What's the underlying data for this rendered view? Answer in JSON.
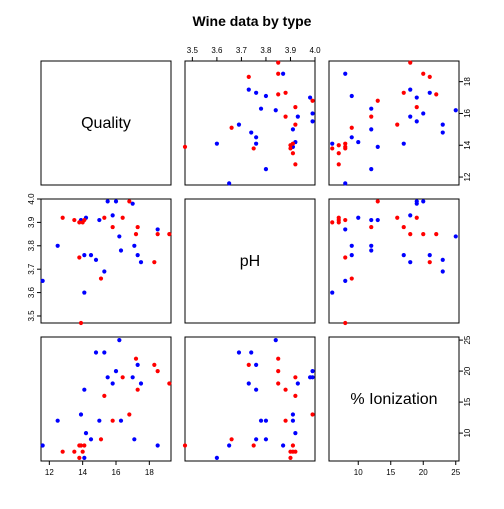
{
  "chart_data": {
    "type": "scatter",
    "title": "Wine data by type",
    "matrix": "scatterplot-matrix",
    "variables": [
      "Quality",
      "pH",
      "% Ionization"
    ],
    "ranges": {
      "quality": [
        11.5,
        19.3
      ],
      "ph": [
        3.47,
        4.0
      ],
      "ionization": [
        5.5,
        25.5
      ]
    },
    "ticks": {
      "quality": [
        12,
        14,
        16,
        18
      ],
      "ph": [
        3.5,
        3.6,
        3.7,
        3.8,
        3.9,
        4.0
      ],
      "ionization": [
        10,
        15,
        20,
        25
      ]
    },
    "tick_labels": {
      "quality": [
        "12",
        "14",
        "16",
        "18"
      ],
      "ph": [
        "3.5",
        "3.6",
        "3.7",
        "3.8",
        "3.9",
        "4.0"
      ],
      "ionization": [
        "10",
        "15",
        "20",
        "25"
      ]
    },
    "grid": false,
    "legend": "none",
    "series": [
      {
        "color": "#0000ff",
        "points": [
          {
            "quality": 11.6,
            "ph": 3.65,
            "ionization": 8
          },
          {
            "quality": 12.5,
            "ph": 3.8,
            "ionization": 12
          },
          {
            "quality": 13.9,
            "ph": 3.91,
            "ionization": 13
          },
          {
            "quality": 14.1,
            "ph": 3.76,
            "ionization": 17
          },
          {
            "quality": 14.1,
            "ph": 3.6,
            "ionization": 6
          },
          {
            "quality": 14.2,
            "ph": 3.92,
            "ionization": 10
          },
          {
            "quality": 14.5,
            "ph": 3.76,
            "ionization": 9
          },
          {
            "quality": 14.8,
            "ph": 3.74,
            "ionization": 23
          },
          {
            "quality": 15.0,
            "ph": 3.91,
            "ionization": 12
          },
          {
            "quality": 15.3,
            "ph": 3.69,
            "ionization": 23
          },
          {
            "quality": 15.5,
            "ph": 3.99,
            "ionization": 19
          },
          {
            "quality": 15.8,
            "ph": 3.93,
            "ionization": 18
          },
          {
            "quality": 16.0,
            "ph": 3.99,
            "ionization": 20
          },
          {
            "quality": 16.2,
            "ph": 3.84,
            "ionization": 25
          },
          {
            "quality": 16.3,
            "ph": 3.78,
            "ionization": 12
          },
          {
            "quality": 17.0,
            "ph": 3.98,
            "ionization": 19
          },
          {
            "quality": 17.1,
            "ph": 3.8,
            "ionization": 9
          },
          {
            "quality": 17.3,
            "ph": 3.76,
            "ionization": 21
          },
          {
            "quality": 17.5,
            "ph": 3.73,
            "ionization": 18
          },
          {
            "quality": 18.5,
            "ph": 3.87,
            "ionization": 8
          }
        ]
      },
      {
        "color": "#ff0000",
        "points": [
          {
            "quality": 12.8,
            "ph": 3.92,
            "ionization": 7
          },
          {
            "quality": 13.5,
            "ph": 3.91,
            "ionization": 7
          },
          {
            "quality": 13.8,
            "ph": 3.9,
            "ionization": 6
          },
          {
            "quality": 13.8,
            "ph": 3.75,
            "ionization": 8
          },
          {
            "quality": 13.9,
            "ph": 3.47,
            "ionization": 8
          },
          {
            "quality": 14.0,
            "ph": 3.9,
            "ionization": 7
          },
          {
            "quality": 14.1,
            "ph": 3.91,
            "ionization": 8
          },
          {
            "quality": 15.1,
            "ph": 3.66,
            "ionization": 9
          },
          {
            "quality": 15.3,
            "ph": 3.92,
            "ionization": 16
          },
          {
            "quality": 15.8,
            "ph": 3.88,
            "ionization": 12
          },
          {
            "quality": 16.4,
            "ph": 3.92,
            "ionization": 19
          },
          {
            "quality": 16.8,
            "ph": 3.99,
            "ionization": 13
          },
          {
            "quality": 17.2,
            "ph": 3.85,
            "ionization": 22
          },
          {
            "quality": 17.3,
            "ph": 3.88,
            "ionization": 17
          },
          {
            "quality": 18.3,
            "ph": 3.73,
            "ionization": 21
          },
          {
            "quality": 18.5,
            "ph": 3.85,
            "ionization": 20
          },
          {
            "quality": 19.2,
            "ph": 3.85,
            "ionization": 18
          }
        ]
      }
    ]
  }
}
